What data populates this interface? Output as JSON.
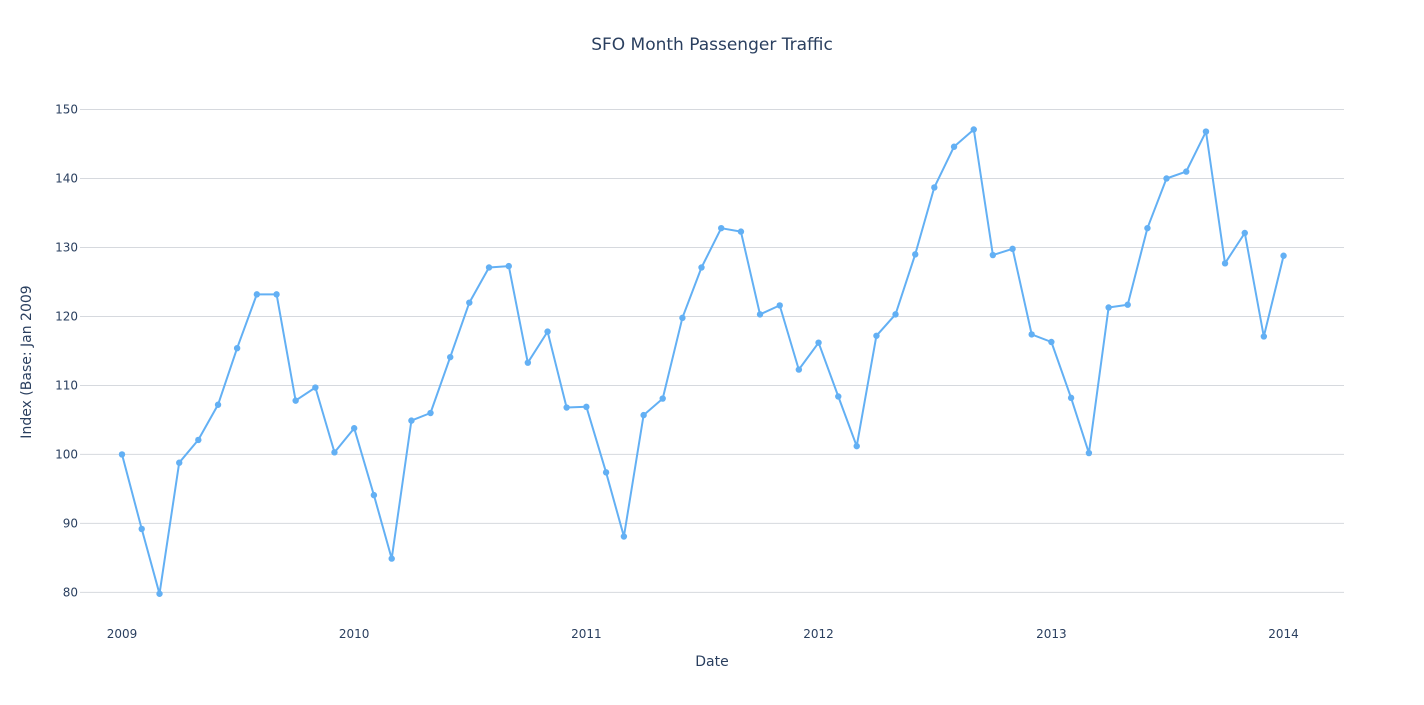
{
  "chart_data": {
    "type": "line",
    "title": "SFO Month Passenger Traffic",
    "xlabel": "Date",
    "ylabel": "Index (Base: Jan 2009",
    "grid": "horizontal",
    "legend": "none",
    "x_range": [
      "2008-10-27",
      "2014-04-06"
    ],
    "ylim": [
      76,
      155
    ],
    "y_ticks": [
      80,
      90,
      100,
      110,
      120,
      130,
      140,
      150
    ],
    "x_ticks": [
      {
        "date": "2009-01-01",
        "label": "2009"
      },
      {
        "date": "2010-01-01",
        "label": "2010"
      },
      {
        "date": "2011-01-01",
        "label": "2011"
      },
      {
        "date": "2012-01-01",
        "label": "2012"
      },
      {
        "date": "2013-01-01",
        "label": "2013"
      },
      {
        "date": "2014-01-01",
        "label": "2014"
      }
    ],
    "line_color": "#63b0f4",
    "series": [
      {
        "x": [
          "2009-01-01",
          "2009-02-01",
          "2009-03-01",
          "2009-04-01",
          "2009-05-01",
          "2009-06-01",
          "2009-07-01",
          "2009-08-01",
          "2009-09-01",
          "2009-10-01",
          "2009-11-01",
          "2009-12-01",
          "2010-01-01",
          "2010-02-01",
          "2010-03-01",
          "2010-04-01",
          "2010-05-01",
          "2010-06-01",
          "2010-07-01",
          "2010-08-01",
          "2010-09-01",
          "2010-10-01",
          "2010-11-01",
          "2010-12-01",
          "2011-01-01",
          "2011-02-01",
          "2011-03-01",
          "2011-04-01",
          "2011-05-01",
          "2011-06-01",
          "2011-07-01",
          "2011-08-01",
          "2011-09-01",
          "2011-10-01",
          "2011-11-01",
          "2011-12-01",
          "2012-01-01",
          "2012-02-01",
          "2012-03-01",
          "2012-04-01",
          "2012-05-01",
          "2012-06-01",
          "2012-07-01",
          "2012-08-01",
          "2012-09-01",
          "2012-10-01",
          "2012-11-01",
          "2012-12-01",
          "2013-01-01",
          "2013-02-01",
          "2013-03-01",
          "2013-04-01",
          "2013-05-01",
          "2013-06-01",
          "2013-07-01",
          "2013-08-01",
          "2013-09-01",
          "2013-10-01",
          "2013-11-01",
          "2013-12-01",
          "2014-01-01"
        ],
        "y": [
          100,
          89.2,
          79.8,
          98.8,
          102.1,
          107.2,
          115.4,
          123.2,
          123.2,
          107.8,
          109.7,
          100.3,
          103.8,
          94.1,
          84.9,
          104.9,
          106.0,
          114.1,
          122.0,
          127.1,
          127.3,
          113.3,
          117.8,
          106.8,
          106.9,
          97.4,
          88.1,
          105.7,
          108.1,
          119.8,
          127.1,
          132.8,
          132.3,
          120.3,
          121.6,
          112.3,
          116.2,
          108.4,
          101.2,
          117.2,
          120.3,
          129.0,
          138.7,
          144.6,
          147.1,
          128.9,
          129.8,
          117.4,
          116.3,
          108.2,
          100.2,
          121.3,
          121.7,
          132.8,
          140.0,
          141.0,
          146.8,
          127.7,
          132.1,
          117.1,
          128.8
        ]
      }
    ]
  }
}
